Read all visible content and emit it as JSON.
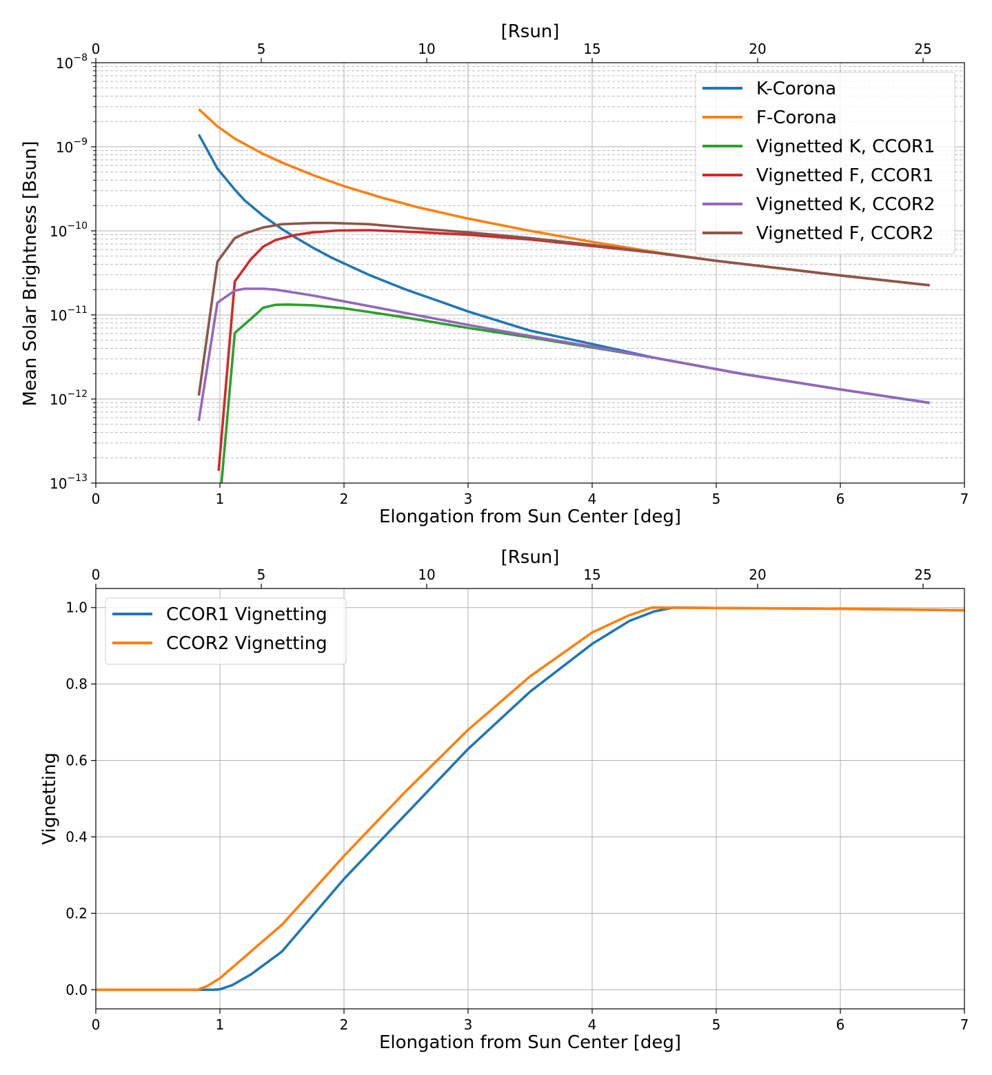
{
  "chart_data": [
    {
      "type": "line",
      "yscale": "log",
      "xlabel": "Elongation from Sun Center [deg]",
      "ylabel": "Mean Solar Brightness [Bsun]",
      "top_xlabel": "[Rsun]",
      "xlim": [
        0,
        7
      ],
      "ylim": [
        1e-13,
        1e-08
      ],
      "x_ticks": [
        "0",
        "1",
        "2",
        "3",
        "4",
        "5",
        "6",
        "7"
      ],
      "top_x_ticks": [
        "0",
        "5",
        "10",
        "15",
        "20",
        "25"
      ],
      "y_ticks": [
        {
          "base": "10",
          "exp": "−13",
          "value": 1e-13
        },
        {
          "base": "10",
          "exp": "−12",
          "value": 1e-12
        },
        {
          "base": "10",
          "exp": "−11",
          "value": 1e-11
        },
        {
          "base": "10",
          "exp": "−10",
          "value": 1e-10
        },
        {
          "base": "10",
          "exp": "−9",
          "value": 1e-09
        },
        {
          "base": "10",
          "exp": "−8",
          "value": 1e-08
        }
      ],
      "grid": true,
      "legend_position": "top-right",
      "series": [
        {
          "name": "K-Corona",
          "color": "#1f77b4",
          "x": [
            0.83,
            0.98,
            1.12,
            1.2,
            1.35,
            1.5,
            1.6,
            1.75,
            1.9,
            2.2,
            2.5,
            2.8,
            3.0,
            3.5,
            4.0,
            4.5,
            5.2,
            6.0,
            6.72
          ],
          "y": [
            1.4e-09,
            5.5e-10,
            3.1e-10,
            2.3e-10,
            1.5e-10,
            1.05e-10,
            8.5e-11,
            6.3e-11,
            4.8e-11,
            3e-11,
            2e-11,
            1.4e-11,
            1.1e-11,
            6.5e-12,
            4.5e-12,
            3.1e-12,
            2e-12,
            1.3e-12,
            9e-13
          ]
        },
        {
          "name": "F-Corona",
          "color": "#ff7f0e",
          "x": [
            0.83,
            0.98,
            1.12,
            1.35,
            1.5,
            1.75,
            2.0,
            2.3,
            2.6,
            3.0,
            3.5,
            4.0,
            4.5,
            5.0,
            5.5,
            6.0,
            6.72
          ],
          "y": [
            2.8e-09,
            1.75e-09,
            1.25e-09,
            8.2e-10,
            6.5e-10,
            4.6e-10,
            3.4e-10,
            2.5e-10,
            1.9e-10,
            1.4e-10,
            1e-10,
            7.4e-11,
            5.6e-11,
            4.4e-11,
            3.6e-11,
            2.95e-11,
            2.25e-11
          ]
        },
        {
          "name": "Vignetted K, CCOR1",
          "color": "#2ca02c",
          "x": [
            1.01,
            1.12,
            1.25,
            1.35,
            1.45,
            1.55,
            1.75,
            2.0,
            2.5,
            3.0,
            3.5,
            4.0,
            4.5,
            5.2,
            6.0,
            6.72
          ],
          "y": [
            9e-14,
            6.1e-12,
            9e-12,
            1.22e-11,
            1.32e-11,
            1.33e-11,
            1.3e-11,
            1.2e-11,
            9.3e-12,
            7e-12,
            5.4e-12,
            4.1e-12,
            3.1e-12,
            2e-12,
            1.3e-12,
            9e-13
          ]
        },
        {
          "name": "Vignetted F, CCOR1",
          "color": "#d62728",
          "x": [
            0.99,
            1.12,
            1.25,
            1.35,
            1.45,
            1.6,
            1.75,
            1.95,
            2.2,
            2.5,
            3.0,
            3.5,
            4.0,
            4.5,
            5.0,
            5.5,
            6.0,
            6.72
          ],
          "y": [
            1.4e-13,
            2.5e-11,
            4.6e-11,
            6.5e-11,
            7.8e-11,
            8.9e-11,
            9.6e-11,
            1.01e-10,
            1.02e-10,
            9.8e-11,
            9e-11,
            7.9e-11,
            6.6e-11,
            5.5e-11,
            4.4e-11,
            3.6e-11,
            2.95e-11,
            2.25e-11
          ]
        },
        {
          "name": "Vignetted K, CCOR2",
          "color": "#9467bd",
          "x": [
            0.83,
            0.98,
            1.12,
            1.2,
            1.35,
            1.45,
            1.75,
            2.0,
            2.5,
            3.0,
            3.5,
            4.0,
            4.5,
            5.2,
            6.0,
            6.72
          ],
          "y": [
            5.5e-13,
            1.4e-11,
            1.95e-11,
            2.05e-11,
            2.05e-11,
            2e-11,
            1.7e-11,
            1.45e-11,
            1.05e-11,
            7.6e-12,
            5.6e-12,
            4.2e-12,
            3.1e-12,
            2e-12,
            1.3e-12,
            9e-13
          ]
        },
        {
          "name": "Vignetted F, CCOR2",
          "color": "#8c564b",
          "x": [
            0.83,
            0.98,
            1.12,
            1.2,
            1.35,
            1.5,
            1.75,
            1.9,
            2.2,
            2.5,
            3.0,
            3.5,
            4.0,
            4.5,
            5.0,
            5.5,
            6.0,
            6.72
          ],
          "y": [
            1.1e-12,
            4.3e-11,
            8.2e-11,
            9.3e-11,
            1.1e-10,
            1.2e-10,
            1.24e-10,
            1.24e-10,
            1.2e-10,
            1.1e-10,
            9.6e-11,
            8.2e-11,
            6.8e-11,
            5.5e-11,
            4.4e-11,
            3.6e-11,
            2.95e-11,
            2.25e-11
          ]
        }
      ]
    },
    {
      "type": "line",
      "xlabel": "Elongation from Sun Center [deg]",
      "ylabel": "Vignetting",
      "top_xlabel": "[Rsun]",
      "xlim": [
        0,
        7
      ],
      "ylim": [
        -0.05,
        1.05
      ],
      "x_ticks": [
        "0",
        "1",
        "2",
        "3",
        "4",
        "5",
        "6",
        "7"
      ],
      "top_x_ticks": [
        "0",
        "5",
        "10",
        "15",
        "20",
        "25"
      ],
      "y_ticks": [
        "0.0",
        "0.2",
        "0.4",
        "0.6",
        "0.8",
        "1.0"
      ],
      "grid": true,
      "legend_position": "top-left",
      "series": [
        {
          "name": "CCOR1 Vignetting",
          "color": "#1f77b4",
          "x": [
            0,
            0.5,
            0.95,
            1.0,
            1.1,
            1.25,
            1.5,
            2.0,
            2.5,
            3.0,
            3.5,
            4.0,
            4.3,
            4.5,
            4.65,
            5.0,
            6.0,
            7.0
          ],
          "y": [
            0,
            0,
            0,
            0.001,
            0.012,
            0.04,
            0.1,
            0.29,
            0.46,
            0.63,
            0.78,
            0.905,
            0.965,
            0.99,
            1.0,
            0.999,
            0.997,
            0.993
          ]
        },
        {
          "name": "CCOR2 Vignetting",
          "color": "#ff7f0e",
          "x": [
            0,
            0.5,
            0.82,
            0.9,
            1.0,
            1.25,
            1.5,
            2.0,
            2.5,
            3.0,
            3.5,
            4.0,
            4.3,
            4.48,
            5.0,
            6.0,
            7.0
          ],
          "y": [
            0,
            0,
            0,
            0.01,
            0.03,
            0.1,
            0.17,
            0.35,
            0.52,
            0.68,
            0.82,
            0.935,
            0.98,
            1.0,
            0.999,
            0.997,
            0.993
          ]
        }
      ]
    }
  ]
}
